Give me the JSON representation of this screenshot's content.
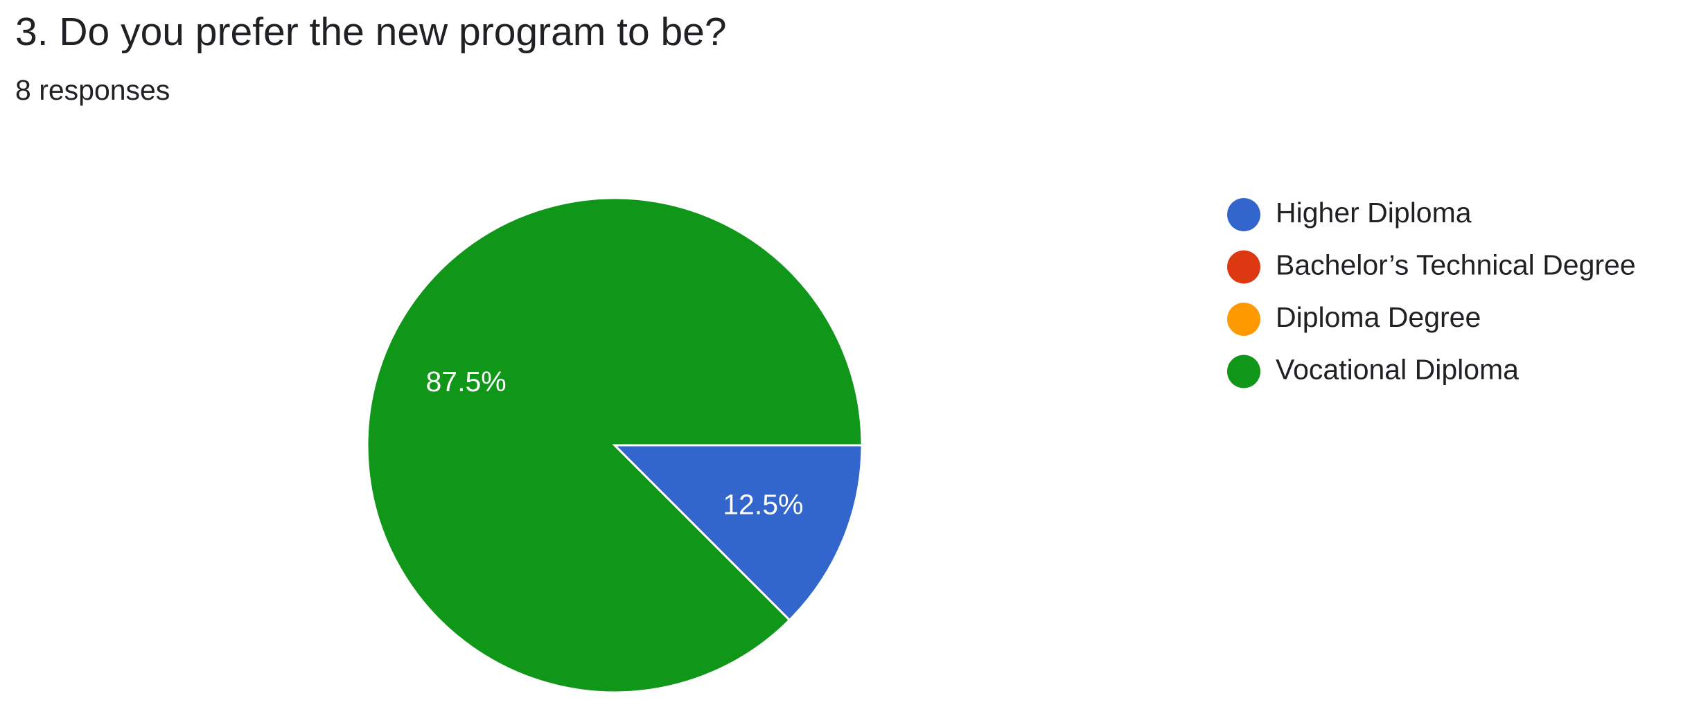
{
  "chart_data": {
    "type": "pie",
    "title": "3. Do you prefer the new program to be?",
    "subtitle": "8 responses",
    "categories": [
      "Higher Diploma",
      "Bachelor’s Technical Degree",
      "Diploma Degree",
      "Vocational Diploma"
    ],
    "values": [
      12.5,
      0,
      0,
      87.5
    ],
    "value_labels": [
      "12.5%",
      null,
      null,
      "87.5%"
    ],
    "colors": [
      "#3366cc",
      "#dc3912",
      "#ff9900",
      "#109618"
    ],
    "legend": "right"
  }
}
